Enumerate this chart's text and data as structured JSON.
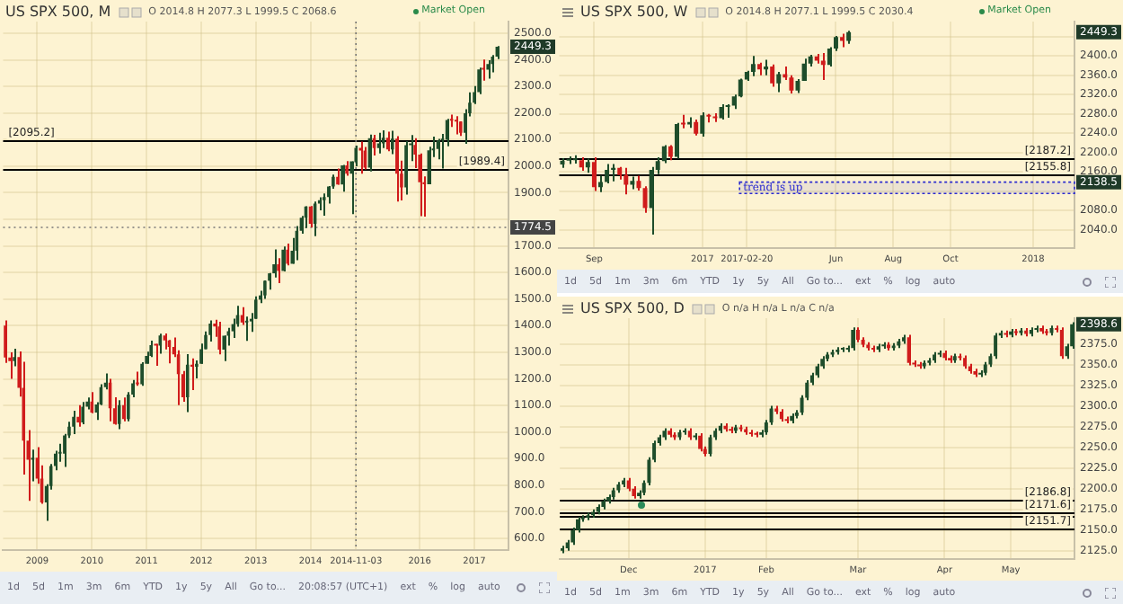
{
  "chart_data": [
    {
      "type": "candlestick",
      "title": "US SPX 500, M",
      "subtitle": "Market Open",
      "categories": [
        null,
        null,
        null,
        null,
        null,
        null,
        null,
        "2009",
        null,
        null,
        null,
        null,
        null,
        null,
        null,
        null,
        null,
        null,
        null,
        "2010",
        null,
        null,
        null,
        null,
        null,
        null,
        null,
        null,
        null,
        null,
        null,
        "2011",
        null,
        null,
        null,
        null,
        null,
        null,
        null,
        null,
        null,
        null,
        null,
        "2012",
        null,
        null,
        null,
        null,
        null,
        null,
        null,
        null,
        null,
        null,
        null,
        "2013",
        null,
        null,
        null,
        null,
        null,
        null,
        null,
        null,
        null,
        null,
        null,
        "2014",
        null,
        null,
        null,
        null,
        null,
        null,
        null,
        null,
        null,
        "2014-11-03",
        null,
        null,
        null,
        null,
        null,
        null,
        null,
        null,
        null,
        null,
        null,
        null,
        null,
        "2016",
        null,
        null,
        null,
        null,
        null,
        null,
        null,
        null,
        null,
        null,
        null,
        "2017",
        null,
        null,
        null,
        null,
        null,
        null,
        null
      ],
      "ohlc": [
        [
          1400,
          1420,
          1260,
          1280
        ],
        [
          1280,
          1300,
          1200,
          1267
        ],
        [
          1267,
          1313,
          1247,
          1282
        ],
        [
          1282,
          1303,
          1133,
          1166
        ],
        [
          1166,
          1264,
          840,
          968
        ],
        [
          968,
          1007,
          741,
          896
        ],
        [
          896,
          934,
          815,
          903
        ],
        [
          903,
          943,
          805,
          825
        ],
        [
          825,
          875,
          730,
          735
        ],
        [
          735,
          804,
          666,
          797
        ],
        [
          797,
          880,
          783,
          872
        ],
        [
          872,
          930,
          856,
          919
        ],
        [
          919,
          956,
          888,
          919
        ],
        [
          919,
          993,
          869,
          987
        ],
        [
          987,
          1039,
          978,
          1020
        ],
        [
          1020,
          1080,
          992,
          1057
        ],
        [
          1057,
          1101,
          1020,
          1036
        ],
        [
          1036,
          1113,
          1029,
          1095
        ],
        [
          1095,
          1130,
          1085,
          1115
        ],
        [
          1115,
          1150,
          1071,
          1073
        ],
        [
          1073,
          1112,
          1045,
          1104
        ],
        [
          1104,
          1180,
          1101,
          1169
        ],
        [
          1169,
          1220,
          1160,
          1186
        ],
        [
          1186,
          1200,
          1040,
          1089
        ],
        [
          1089,
          1131,
          1028,
          1030
        ],
        [
          1030,
          1120,
          1011,
          1101
        ],
        [
          1101,
          1130,
          1040,
          1049
        ],
        [
          1049,
          1150,
          1040,
          1141
        ],
        [
          1141,
          1196,
          1131,
          1183
        ],
        [
          1183,
          1227,
          1174,
          1180
        ],
        [
          1180,
          1263,
          1174,
          1257
        ],
        [
          1257,
          1302,
          1257,
          1286
        ],
        [
          1286,
          1344,
          1282,
          1327
        ],
        [
          1327,
          1332,
          1249,
          1325
        ],
        [
          1325,
          1370,
          1295,
          1363
        ],
        [
          1363,
          1371,
          1311,
          1345
        ],
        [
          1345,
          1346,
          1258,
          1320
        ],
        [
          1320,
          1356,
          1282,
          1292
        ],
        [
          1292,
          1307,
          1101,
          1218
        ],
        [
          1218,
          1230,
          1114,
          1131
        ],
        [
          1131,
          1293,
          1075,
          1253
        ],
        [
          1253,
          1277,
          1158,
          1246
        ],
        [
          1246,
          1269,
          1202,
          1257
        ],
        [
          1257,
          1333,
          1257,
          1312
        ],
        [
          1312,
          1378,
          1312,
          1365
        ],
        [
          1365,
          1420,
          1340,
          1408
        ],
        [
          1408,
          1422,
          1358,
          1397
        ],
        [
          1397,
          1415,
          1292,
          1310
        ],
        [
          1310,
          1363,
          1267,
          1362
        ],
        [
          1362,
          1392,
          1325,
          1379
        ],
        [
          1379,
          1427,
          1354,
          1406
        ],
        [
          1406,
          1475,
          1396,
          1440
        ],
        [
          1440,
          1470,
          1403,
          1412
        ],
        [
          1412,
          1434,
          1343,
          1416
        ],
        [
          1416,
          1448,
          1377,
          1426
        ],
        [
          1426,
          1510,
          1426,
          1498
        ],
        [
          1498,
          1531,
          1485,
          1514
        ],
        [
          1514,
          1570,
          1501,
          1569
        ],
        [
          1569,
          1598,
          1536,
          1597
        ],
        [
          1597,
          1687,
          1581,
          1631
        ],
        [
          1631,
          1654,
          1560,
          1606
        ],
        [
          1606,
          1698,
          1604,
          1686
        ],
        [
          1686,
          1709,
          1627,
          1633
        ],
        [
          1633,
          1730,
          1633,
          1682
        ],
        [
          1682,
          1775,
          1646,
          1757
        ],
        [
          1757,
          1813,
          1746,
          1806
        ],
        [
          1806,
          1849,
          1767,
          1848
        ],
        [
          1848,
          1850,
          1770,
          1783
        ],
        [
          1783,
          1867,
          1737,
          1859
        ],
        [
          1859,
          1883,
          1834,
          1872
        ],
        [
          1872,
          1897,
          1814,
          1884
        ],
        [
          1884,
          1925,
          1859,
          1924
        ],
        [
          1924,
          1968,
          1915,
          1960
        ],
        [
          1960,
          1991,
          1930,
          1931
        ],
        [
          1931,
          2005,
          1904,
          2003
        ],
        [
          2003,
          2019,
          1964,
          1972
        ],
        [
          1972,
          2018,
          1820,
          2018
        ],
        [
          2014.8,
          2077.3,
          1999.5,
          2068.6
        ],
        [
          2068.6,
          2093,
          1972,
          2059
        ],
        [
          2059,
          2072,
          1988,
          1995
        ],
        [
          1995,
          2119,
          1980,
          2105
        ],
        [
          2105,
          2118,
          2040,
          2068
        ],
        [
          2068,
          2126,
          2048,
          2086
        ],
        [
          2086,
          2135,
          2068,
          2107
        ],
        [
          2107,
          2130,
          2056,
          2063
        ],
        [
          2063,
          2133,
          2045,
          2104
        ],
        [
          2104,
          2113,
          1867,
          1972
        ],
        [
          1972,
          2021,
          1871,
          1920
        ],
        [
          1920,
          2094,
          1893,
          2079
        ],
        [
          2079,
          2117,
          2019,
          2080
        ],
        [
          2080,
          2105,
          1993,
          2044
        ],
        [
          2044,
          2048,
          1812,
          1940
        ],
        [
          1940,
          1962,
          1810,
          1932
        ],
        [
          1932,
          2073,
          1932,
          2060
        ],
        [
          2060,
          2111,
          2034,
          2065
        ],
        [
          2065,
          2103,
          2026,
          2097
        ],
        [
          2097,
          2121,
          1991,
          2099
        ],
        [
          2099,
          2178,
          2075,
          2174
        ],
        [
          2174,
          2194,
          2148,
          2171
        ],
        [
          2171,
          2188,
          2120,
          2168
        ],
        [
          2168,
          2169,
          2114,
          2126
        ],
        [
          2126,
          2214,
          2084,
          2199
        ],
        [
          2199,
          2278,
          2187,
          2239
        ],
        [
          2239,
          2301,
          2234,
          2279
        ],
        [
          2279,
          2371,
          2271,
          2364
        ],
        [
          2364,
          2401,
          2322,
          2363
        ],
        [
          2363,
          2399,
          2329,
          2384
        ],
        [
          2384,
          2418,
          2353,
          2412
        ],
        [
          2412,
          2452,
          2403,
          2449.3
        ],
        null,
        null
      ],
      "ylim": [
        556,
        2544
      ],
      "yticks": [
        {
          "value": 600,
          "label": "600.0"
        },
        {
          "value": 700,
          "label": "700.0"
        },
        {
          "value": 800,
          "label": "800.0"
        },
        {
          "value": 900,
          "label": "900.0"
        },
        {
          "value": 1000,
          "label": "1000.0"
        },
        {
          "value": 1100,
          "label": "1100.0"
        },
        {
          "value": 1200,
          "label": "1200.0"
        },
        {
          "value": 1300,
          "label": "1300.0"
        },
        {
          "value": 1400,
          "label": "1400.0"
        },
        {
          "value": 1500,
          "label": "1500.0"
        },
        {
          "value": 1600,
          "label": "1600.0"
        },
        {
          "value": 1700,
          "label": "1700.0"
        },
        {
          "value": 1800,
          "label": null
        },
        {
          "value": 1900,
          "label": "1900.0"
        },
        {
          "value": 2000,
          "label": "2000.0"
        },
        {
          "value": 2100,
          "label": "2100.0"
        },
        {
          "value": 2200,
          "label": "2200.0"
        },
        {
          "value": 2300,
          "label": "2300.0"
        },
        {
          "value": 2400,
          "label": "2400.0"
        },
        {
          "value": 2500,
          "label": "2500.0"
        }
      ],
      "grid": true,
      "ref_lines": [
        {
          "axis": "y",
          "value": 2095.2,
          "label": "[2095.2]",
          "color": "#000000"
        },
        {
          "axis": "y",
          "value": 1989.4,
          "label": "[1989.4]",
          "color": "#000000"
        },
        {
          "axis": "y",
          "value": 1774.5,
          "label": "1774.5",
          "color": "#777777",
          "line_style": "dotted"
        },
        {
          "axis": "x",
          "value": "2014-11-03",
          "color": "#777777",
          "line_style": "dotted"
        }
      ],
      "annotations": [
        "O 2014.8 H 2077.3 L 1999.5 C 2068.6",
        "1d",
        "5d",
        "1m",
        "3m",
        "6m",
        "YTD",
        "1y",
        "5y",
        "All",
        "Go to...",
        "20:08:57 (UTC+1)",
        "ext",
        "%",
        "log",
        "auto",
        {
          "text": "2449.3",
          "y": 2449.3
        }
      ]
    },
    {
      "type": "candlestick",
      "title": "US SPX 500, W",
      "subtitle": "Market Open",
      "categories": [
        null,
        null,
        null,
        null,
        null,
        "Sep",
        null,
        null,
        null,
        null,
        null,
        null,
        null,
        null,
        null,
        null,
        null,
        null,
        null,
        null,
        null,
        null,
        "2017",
        null,
        null,
        null,
        null,
        null,
        null,
        "2017-02-20",
        null,
        null,
        null,
        null,
        null,
        null,
        null,
        null,
        null,
        null,
        null,
        null,
        null,
        "Jun",
        null,
        null,
        null,
        null,
        null,
        null,
        null,
        null,
        "Aug",
        null,
        null,
        null,
        null,
        null,
        null,
        null,
        null,
        "Oct",
        null,
        null,
        null,
        null,
        null,
        null,
        null,
        null,
        null,
        null,
        null,
        null,
        "2018",
        null,
        null,
        null,
        null,
        null,
        null
      ],
      "ohlc": [
        [
          2175,
          2188,
          2168,
          2183
        ],
        [
          2183,
          2192,
          2176,
          2184
        ],
        [
          2184,
          2194,
          2177,
          2184
        ],
        [
          2184,
          2190,
          2162,
          2169
        ],
        [
          2169,
          2187,
          2158,
          2180
        ],
        [
          2180,
          2190,
          2120,
          2128
        ],
        [
          2128,
          2152,
          2118,
          2139
        ],
        [
          2139,
          2176,
          2136,
          2164
        ],
        [
          2164,
          2176,
          2140,
          2168
        ],
        [
          2168,
          2170,
          2144,
          2153
        ],
        [
          2153,
          2168,
          2113,
          2133
        ],
        [
          2133,
          2150,
          2124,
          2141
        ],
        [
          2141,
          2152,
          2121,
          2126
        ],
        [
          2126,
          2130,
          2075,
          2085
        ],
        [
          2085,
          2170,
          2030,
          2164
        ],
        [
          2164,
          2190,
          2155,
          2182
        ],
        [
          2182,
          2215,
          2178,
          2213
        ],
        [
          2213,
          2215,
          2184,
          2191
        ],
        [
          2191,
          2261,
          2187,
          2259
        ],
        [
          2259,
          2278,
          2250,
          2258
        ],
        [
          2258,
          2273,
          2251,
          2263
        ],
        [
          2263,
          2268,
          2235,
          2239
        ],
        [
          2239,
          2283,
          2233,
          2277
        ],
        [
          2277,
          2280,
          2262,
          2274
        ],
        [
          2274,
          2281,
          2263,
          2271
        ],
        [
          2271,
          2300,
          2268,
          2294
        ],
        [
          2294,
          2300,
          2272,
          2297
        ],
        [
          2297,
          2320,
          2290,
          2316
        ],
        [
          2316,
          2353,
          2314,
          2351
        ],
        [
          2351,
          2369,
          2348,
          2367
        ],
        [
          2367,
          2400,
          2358,
          2383
        ],
        [
          2383,
          2386,
          2360,
          2372
        ],
        [
          2372,
          2392,
          2360,
          2378
        ],
        [
          2378,
          2382,
          2336,
          2343
        ],
        [
          2343,
          2367,
          2325,
          2362
        ],
        [
          2362,
          2378,
          2350,
          2355
        ],
        [
          2355,
          2360,
          2322,
          2328
        ],
        [
          2328,
          2352,
          2323,
          2348
        ],
        [
          2348,
          2394,
          2348,
          2384
        ],
        [
          2384,
          2402,
          2378,
          2399
        ],
        [
          2399,
          2404,
          2384,
          2390
        ],
        [
          2390,
          2406,
          2350,
          2381
        ],
        [
          2381,
          2418,
          2378,
          2415
        ],
        [
          2415,
          2441,
          2410,
          2439
        ],
        [
          2439,
          2446,
          2418,
          2431
        ],
        [
          2431,
          2452,
          2425,
          2449.3
        ],
        null,
        null,
        null,
        null,
        null,
        null,
        null,
        null,
        null,
        null,
        null,
        null,
        null,
        null,
        null,
        null,
        null,
        null,
        null,
        null,
        null,
        null,
        null,
        null,
        null,
        null,
        null,
        null,
        null,
        null,
        null,
        null,
        null,
        null,
        null
      ],
      "ylim": [
        2002,
        2471
      ],
      "yticks": [
        {
          "value": 2040,
          "label": "2040.0"
        },
        {
          "value": 2080,
          "label": "2080.0"
        },
        {
          "value": 2120,
          "label": null
        },
        {
          "value": 2160,
          "label": "2160.0"
        },
        {
          "value": 2200,
          "label": "2200.0"
        },
        {
          "value": 2240,
          "label": "2240.0"
        },
        {
          "value": 2280,
          "label": "2280.0"
        },
        {
          "value": 2320,
          "label": "2320.0"
        },
        {
          "value": 2360,
          "label": "2360.0"
        },
        {
          "value": 2400,
          "label": "2400.0"
        },
        {
          "value": 2440,
          "label": null
        }
      ],
      "grid": true,
      "ref_lines": [
        {
          "axis": "y",
          "value": 2187.2,
          "label": "[2187.2]",
          "color": "#000000"
        },
        {
          "axis": "y",
          "value": 2155.8,
          "label": "[2155.8]",
          "color": "#000000"
        }
      ],
      "bands": [
        {
          "axis": "y",
          "from": 2115,
          "to": 2138.5,
          "label": "trend is up",
          "color": "#2a2ad0"
        }
      ],
      "annotations": [
        "O 2014.8 H 2077.1 L 1999.5 C 2030.4",
        "1d",
        "5d",
        "1m",
        "3m",
        "6m",
        "YTD",
        "1y",
        "5y",
        "All",
        "Go to...",
        "ext",
        "%",
        "log",
        "auto",
        {
          "text": "2449.3",
          "y": 2449.3
        },
        {
          "text": "2138.5",
          "y": 2138.5
        }
      ]
    },
    {
      "type": "candlestick",
      "title": "US SPX 500, D",
      "categories": [
        null,
        null,
        null,
        null,
        null,
        null,
        null,
        null,
        null,
        null,
        null,
        null,
        null,
        "Dec",
        null,
        null,
        null,
        null,
        null,
        null,
        null,
        null,
        null,
        null,
        null,
        null,
        null,
        null,
        "2017",
        null,
        null,
        null,
        null,
        null,
        null,
        null,
        null,
        null,
        null,
        null,
        "Feb",
        null,
        null,
        null,
        null,
        null,
        null,
        null,
        null,
        null,
        null,
        null,
        null,
        null,
        null,
        null,
        null,
        null,
        "Mar",
        null,
        null,
        null,
        null,
        null,
        null,
        null,
        null,
        null,
        null,
        null,
        null,
        null,
        null,
        null,
        null,
        "Apr",
        null,
        null,
        null,
        null,
        null,
        null,
        null,
        null,
        null,
        null,
        null,
        null,
        "May",
        null,
        null,
        null,
        null,
        null,
        null,
        null,
        null,
        null,
        null,
        null,
        null
      ],
      "ohlc": [
        [
          2125,
          2131,
          2122,
          2128
        ],
        [
          2128,
          2138,
          2125,
          2135
        ],
        [
          2135,
          2153,
          2132,
          2150
        ],
        [
          2150,
          2166,
          2147,
          2163
        ],
        [
          2163,
          2168,
          2160,
          2165
        ],
        [
          2165,
          2171,
          2162,
          2168
        ],
        [
          2168,
          2175,
          2165,
          2172
        ],
        [
          2172,
          2181,
          2169,
          2178
        ],
        [
          2178,
          2188,
          2175,
          2185
        ],
        [
          2185,
          2193,
          2182,
          2190
        ],
        [
          2190,
          2201,
          2187,
          2198
        ],
        [
          2198,
          2208,
          2195,
          2205
        ],
        [
          2205,
          2213,
          2202,
          2210
        ],
        [
          2210,
          2213,
          2197,
          2200
        ],
        [
          2200,
          2203,
          2188,
          2191
        ],
        [
          2191,
          2198,
          2188,
          2195
        ],
        [
          2195,
          2210,
          2192,
          2207
        ],
        [
          2207,
          2238,
          2204,
          2235
        ],
        [
          2235,
          2258,
          2232,
          2255
        ],
        [
          2255,
          2265,
          2252,
          2262
        ],
        [
          2262,
          2273,
          2259,
          2270
        ],
        [
          2270,
          2273,
          2262,
          2265
        ],
        [
          2265,
          2268,
          2259,
          2262
        ],
        [
          2262,
          2271,
          2259,
          2268
        ],
        [
          2268,
          2273,
          2265,
          2270
        ],
        [
          2270,
          2273,
          2259,
          2262
        ],
        [
          2262,
          2267,
          2259,
          2264
        ],
        [
          2264,
          2267,
          2245,
          2248
        ],
        [
          2248,
          2251,
          2239,
          2242
        ],
        [
          2242,
          2265,
          2239,
          2262
        ],
        [
          2262,
          2273,
          2259,
          2270
        ],
        [
          2270,
          2279,
          2267,
          2276
        ],
        [
          2276,
          2279,
          2269,
          2272
        ],
        [
          2272,
          2275,
          2267,
          2270
        ],
        [
          2270,
          2277,
          2267,
          2274
        ],
        [
          2274,
          2277,
          2269,
          2272
        ],
        [
          2272,
          2275,
          2265,
          2268
        ],
        [
          2268,
          2271,
          2263,
          2266
        ],
        [
          2266,
          2269,
          2262,
          2265
        ],
        [
          2265,
          2271,
          2262,
          2268
        ],
        [
          2268,
          2283,
          2265,
          2280
        ],
        [
          2280,
          2300,
          2277,
          2297
        ],
        [
          2297,
          2300,
          2290,
          2293
        ],
        [
          2293,
          2296,
          2281,
          2284
        ],
        [
          2284,
          2287,
          2279,
          2282
        ],
        [
          2282,
          2291,
          2279,
          2288
        ],
        [
          2288,
          2295,
          2285,
          2292
        ],
        [
          2292,
          2313,
          2289,
          2310
        ],
        [
          2310,
          2331,
          2307,
          2328
        ],
        [
          2328,
          2340,
          2325,
          2337
        ],
        [
          2337,
          2351,
          2334,
          2348
        ],
        [
          2348,
          2360,
          2345,
          2357
        ],
        [
          2357,
          2365,
          2354,
          2362
        ],
        [
          2362,
          2368,
          2359,
          2365
        ],
        [
          2365,
          2371,
          2362,
          2368
        ],
        [
          2368,
          2371,
          2365,
          2368
        ],
        [
          2368,
          2373,
          2365,
          2370
        ],
        [
          2370,
          2395,
          2367,
          2392
        ],
        [
          2392,
          2395,
          2377,
          2380
        ],
        [
          2380,
          2383,
          2371,
          2374
        ],
        [
          2374,
          2377,
          2367,
          2370
        ],
        [
          2370,
          2373,
          2365,
          2368
        ],
        [
          2368,
          2375,
          2365,
          2372
        ],
        [
          2372,
          2377,
          2369,
          2374
        ],
        [
          2374,
          2377,
          2367,
          2370
        ],
        [
          2370,
          2376,
          2367,
          2373
        ],
        [
          2373,
          2381,
          2370,
          2378
        ],
        [
          2378,
          2386,
          2375,
          2383
        ],
        [
          2383,
          2386,
          2349,
          2352
        ],
        [
          2352,
          2355,
          2347,
          2350
        ],
        [
          2350,
          2353,
          2345,
          2348
        ],
        [
          2348,
          2355,
          2345,
          2352
        ],
        [
          2352,
          2358,
          2349,
          2355
        ],
        [
          2355,
          2365,
          2352,
          2362
        ],
        [
          2362,
          2367,
          2359,
          2364
        ],
        [
          2364,
          2367,
          2355,
          2358
        ],
        [
          2358,
          2361,
          2352,
          2355
        ],
        [
          2355,
          2363,
          2352,
          2360
        ],
        [
          2360,
          2363,
          2355,
          2358
        ],
        [
          2358,
          2361,
          2345,
          2348
        ],
        [
          2348,
          2351,
          2339,
          2342
        ],
        [
          2342,
          2345,
          2335,
          2338
        ],
        [
          2338,
          2343,
          2335,
          2340
        ],
        [
          2340,
          2353,
          2337,
          2350
        ],
        [
          2350,
          2363,
          2347,
          2360
        ],
        [
          2360,
          2388,
          2357,
          2385
        ],
        [
          2385,
          2391,
          2382,
          2388
        ],
        [
          2388,
          2391,
          2383,
          2386
        ],
        [
          2386,
          2393,
          2383,
          2390
        ],
        [
          2390,
          2393,
          2385,
          2388
        ],
        [
          2388,
          2394,
          2385,
          2391
        ],
        [
          2391,
          2394,
          2384,
          2387
        ],
        [
          2387,
          2395,
          2384,
          2392
        ],
        [
          2392,
          2397,
          2389,
          2394
        ],
        [
          2394,
          2397,
          2387,
          2390
        ],
        [
          2390,
          2393,
          2385,
          2388
        ],
        [
          2388,
          2397,
          2385,
          2394
        ],
        [
          2394,
          2397,
          2389,
          2392
        ],
        [
          2392,
          2395,
          2357,
          2360
        ],
        [
          2360,
          2375,
          2357,
          2372
        ],
        [
          2372,
          2401,
          2369,
          2398.6
        ]
      ],
      "ylim": [
        2115,
        2406
      ],
      "yticks": [
        {
          "value": 2125,
          "label": "2125.0"
        },
        {
          "value": 2150,
          "label": "2150.0"
        },
        {
          "value": 2175,
          "label": "2175.0"
        },
        {
          "value": 2200,
          "label": "2200.0"
        },
        {
          "value": 2225,
          "label": "2225.0"
        },
        {
          "value": 2250,
          "label": "2250.0"
        },
        {
          "value": 2275,
          "label": "2275.0"
        },
        {
          "value": 2300,
          "label": "2300.0"
        },
        {
          "value": 2325,
          "label": "2325.0"
        },
        {
          "value": 2350,
          "label": "2350.0"
        },
        {
          "value": 2375,
          "label": "2375.0"
        }
      ],
      "grid": true,
      "ref_lines": [
        {
          "axis": "y",
          "value": 2186.8,
          "label": "[2186.8]",
          "color": "#000000"
        },
        {
          "axis": "y",
          "value": 2171.6,
          "label": "[2171.6]",
          "color": "#000000"
        },
        {
          "axis": "y",
          "value": 2167,
          "color": "#000000"
        },
        {
          "axis": "y",
          "value": 2151.7,
          "label": "[2151.7]",
          "color": "#000000"
        }
      ],
      "annotations": [
        "O n/a H n/a L n/a C n/a",
        "1d",
        "5d",
        "1m",
        "3m",
        "6m",
        "YTD",
        "1y",
        "5y",
        "All",
        "Go to...",
        "ext",
        "%",
        "log",
        "auto",
        {
          "text": "2398.6",
          "y": 2398.6
        }
      ]
    }
  ]
}
